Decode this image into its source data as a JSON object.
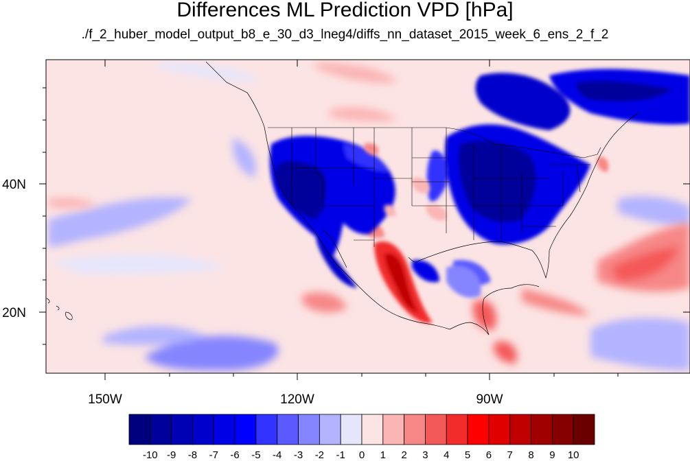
{
  "title": "Differences ML Prediction VPD [hPa]",
  "subtitle": "./f_2_huber_model_output_b8_e_30_d3_lneg4/diffs_nn_dataset_2015_week_6_ens_2_f_2",
  "map": {
    "lon_range": [
      -160,
      -62
    ],
    "lat_range": [
      10,
      59
    ],
    "lon_ticks": [
      {
        "value": -150,
        "label": "150W"
      },
      {
        "value": -120,
        "label": "120W"
      },
      {
        "value": -90,
        "label": "90W"
      }
    ],
    "lat_ticks": [
      {
        "value": 40,
        "label": "40N"
      },
      {
        "value": 20,
        "label": "20N"
      }
    ],
    "background_color": "#fce4e4"
  },
  "colorbar": {
    "levels": [
      "-10",
      "-9",
      "-8",
      "-7",
      "-6",
      "-5",
      "-4",
      "-3",
      "-2",
      "-1",
      "0",
      "1",
      "2",
      "3",
      "4",
      "5",
      "6",
      "7",
      "8",
      "9",
      "10"
    ],
    "colors": [
      "#00007f",
      "#00009a",
      "#0000b4",
      "#0000cc",
      "#0000e6",
      "#0000ff",
      "#3333ff",
      "#5a5aff",
      "#8585ff",
      "#b3b3ff",
      "#e6e6fb",
      "#fce4e4",
      "#fbb5b5",
      "#f78787",
      "#f45959",
      "#f22b2b",
      "#ff0000",
      "#e00000",
      "#c00000",
      "#a00000",
      "#870000",
      "#6b0000"
    ]
  }
}
